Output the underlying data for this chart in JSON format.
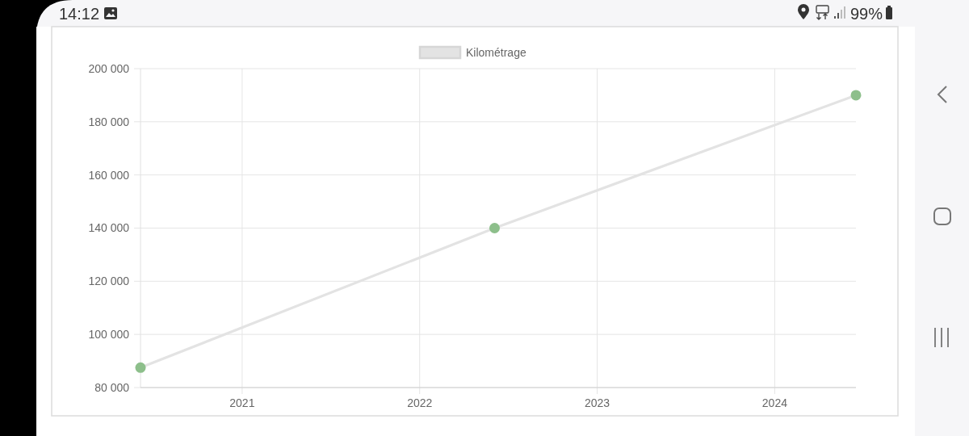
{
  "chart_data": {
    "type": "line",
    "x": [
      "2020-06-06",
      "2022-06-04",
      "2024-06-16"
    ],
    "series": [
      {
        "name": "Kilométrage",
        "color": "#e3e3e3",
        "colors": [
          "#8dbf8b",
          "#8dbf8b",
          "#8dbf8b"
        ],
        "values": [
          87500,
          140000,
          190000
        ]
      }
    ],
    "xlim": [
      "2020-06-06",
      "2024-06-16"
    ],
    "xticks": [
      "2021",
      "2022",
      "2023",
      "2024"
    ],
    "ylim": [
      80000,
      200000
    ],
    "yticks": [
      {
        "value": 80000,
        "label": "80 000"
      },
      {
        "value": 100000,
        "label": "100 000"
      },
      {
        "value": 120000,
        "label": "120 000"
      },
      {
        "value": 140000,
        "label": "140 000"
      },
      {
        "value": 160000,
        "label": "160 000"
      },
      {
        "value": 180000,
        "label": "180 000"
      },
      {
        "value": 200000,
        "label": "200 000"
      }
    ],
    "grid": true,
    "legend": "top",
    "marker": "circle",
    "line_style": "solid",
    "annotations": [
      "14:12",
      "99%"
    ]
  }
}
